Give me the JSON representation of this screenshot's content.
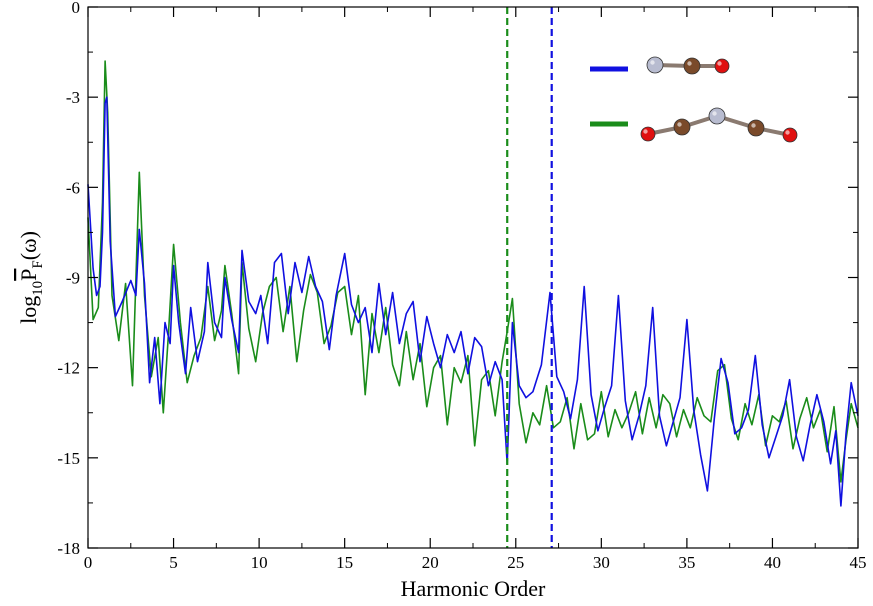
{
  "chart_data": {
    "type": "line",
    "title": "",
    "xlabel": "Harmonic Order",
    "ylabel": {
      "prefix": "log",
      "sub": "10",
      "symbol": "P",
      "symbol_sub": "F",
      "suffix": "(ω)"
    },
    "xlim": [
      0,
      45
    ],
    "ylim": [
      -18,
      0
    ],
    "x_ticks": [
      0,
      5,
      10,
      15,
      20,
      25,
      30,
      35,
      40,
      45
    ],
    "y_ticks": [
      0,
      -3,
      -6,
      -9,
      -12,
      -15,
      -18
    ],
    "grid": false,
    "legend": {
      "placement": "top-right",
      "style": "line swatch with molecule picture"
    },
    "cutoff_lines": [
      {
        "x": 24.5,
        "color": "#1a8c1a",
        "style": "dashed"
      },
      {
        "x": 27.1,
        "color": "#1010e0",
        "style": "dashed"
      }
    ],
    "series": [
      {
        "color": "#1010e0",
        "molecule": [
          "#b8bcd0",
          "#7a4a2a",
          "#e01010"
        ],
        "points": [
          [
            0,
            -5.9
          ],
          [
            0.3,
            -8.7
          ],
          [
            0.5,
            -9.6
          ],
          [
            0.7,
            -9.3
          ],
          [
            0.85,
            -7.5
          ],
          [
            1.0,
            -3.2
          ],
          [
            1.1,
            -3.0
          ],
          [
            1.3,
            -7.8
          ],
          [
            1.6,
            -10.3
          ],
          [
            2.0,
            -9.8
          ],
          [
            2.5,
            -9.1
          ],
          [
            2.8,
            -9.6
          ],
          [
            3.0,
            -7.4
          ],
          [
            3.3,
            -9.2
          ],
          [
            3.6,
            -12.5
          ],
          [
            3.9,
            -11.0
          ],
          [
            4.2,
            -13.2
          ],
          [
            4.5,
            -10.5
          ],
          [
            4.8,
            -11.2
          ],
          [
            5.0,
            -8.6
          ],
          [
            5.3,
            -10.5
          ],
          [
            5.7,
            -12.2
          ],
          [
            6.0,
            -10.0
          ],
          [
            6.4,
            -11.8
          ],
          [
            6.8,
            -10.8
          ],
          [
            7.0,
            -8.5
          ],
          [
            7.4,
            -10.5
          ],
          [
            7.8,
            -11.0
          ],
          [
            8.0,
            -9.0
          ],
          [
            8.4,
            -10.4
          ],
          [
            8.8,
            -11.5
          ],
          [
            9.0,
            -8.1
          ],
          [
            9.4,
            -9.8
          ],
          [
            9.8,
            -10.2
          ],
          [
            10.1,
            -9.6
          ],
          [
            10.5,
            -11.2
          ],
          [
            10.9,
            -8.5
          ],
          [
            11.3,
            -8.2
          ],
          [
            11.7,
            -10.2
          ],
          [
            12.1,
            -8.5
          ],
          [
            12.5,
            -9.5
          ],
          [
            12.9,
            -8.3
          ],
          [
            13.3,
            -9.3
          ],
          [
            13.7,
            -9.8
          ],
          [
            14.1,
            -11.4
          ],
          [
            14.5,
            -9.6
          ],
          [
            15.0,
            -8.2
          ],
          [
            15.4,
            -9.9
          ],
          [
            15.8,
            -10.5
          ],
          [
            16.2,
            -10.0
          ],
          [
            16.6,
            -11.5
          ],
          [
            17.0,
            -9.2
          ],
          [
            17.4,
            -10.9
          ],
          [
            17.8,
            -9.5
          ],
          [
            18.2,
            -11.2
          ],
          [
            18.6,
            -10.2
          ],
          [
            19.0,
            -9.8
          ],
          [
            19.4,
            -11.8
          ],
          [
            19.8,
            -10.3
          ],
          [
            20.2,
            -11.2
          ],
          [
            20.6,
            -12.0
          ],
          [
            21.0,
            -10.9
          ],
          [
            21.4,
            -11.5
          ],
          [
            21.8,
            -10.8
          ],
          [
            22.2,
            -12.2
          ],
          [
            22.6,
            -11.0
          ],
          [
            23.0,
            -11.3
          ],
          [
            23.4,
            -12.6
          ],
          [
            23.8,
            -11.8
          ],
          [
            24.2,
            -12.4
          ],
          [
            24.5,
            -15.2
          ],
          [
            24.8,
            -10.5
          ],
          [
            25.2,
            -12.6
          ],
          [
            25.6,
            -13.0
          ],
          [
            26.0,
            -12.8
          ],
          [
            26.5,
            -11.9
          ],
          [
            27.0,
            -9.5
          ],
          [
            27.4,
            -12.3
          ],
          [
            27.8,
            -12.8
          ],
          [
            28.2,
            -13.7
          ],
          [
            28.6,
            -12.4
          ],
          [
            29.0,
            -9.3
          ],
          [
            29.4,
            -12.9
          ],
          [
            29.8,
            -14.1
          ],
          [
            30.2,
            -13.3
          ],
          [
            30.6,
            -12.6
          ],
          [
            31.0,
            -9.6
          ],
          [
            31.4,
            -13.1
          ],
          [
            31.8,
            -14.4
          ],
          [
            32.2,
            -13.6
          ],
          [
            32.6,
            -12.6
          ],
          [
            33.0,
            -10.0
          ],
          [
            33.4,
            -13.6
          ],
          [
            33.8,
            -14.6
          ],
          [
            34.2,
            -13.8
          ],
          [
            34.6,
            -13.0
          ],
          [
            35.0,
            -10.4
          ],
          [
            35.4,
            -13.4
          ],
          [
            35.8,
            -14.9
          ],
          [
            36.2,
            -16.1
          ],
          [
            36.6,
            -13.7
          ],
          [
            37.0,
            -11.7
          ],
          [
            37.4,
            -12.5
          ],
          [
            37.8,
            -14.2
          ],
          [
            38.2,
            -14.0
          ],
          [
            38.6,
            -13.4
          ],
          [
            39.0,
            -11.6
          ],
          [
            39.4,
            -13.9
          ],
          [
            39.8,
            -15.0
          ],
          [
            40.2,
            -14.3
          ],
          [
            40.6,
            -13.6
          ],
          [
            41.0,
            -12.4
          ],
          [
            41.4,
            -14.3
          ],
          [
            41.8,
            -15.1
          ],
          [
            42.2,
            -13.9
          ],
          [
            42.6,
            -12.9
          ],
          [
            43.0,
            -13.8
          ],
          [
            43.4,
            -15.2
          ],
          [
            43.7,
            -14.1
          ],
          [
            44.0,
            -16.6
          ],
          [
            44.3,
            -14.2
          ],
          [
            44.6,
            -12.5
          ],
          [
            45.0,
            -13.6
          ]
        ]
      },
      {
        "color": "#1a8c1a",
        "molecule": [
          "#e01010",
          "#7a4a2a",
          "#b8bcd0",
          "#7a4a2a",
          "#e01010"
        ],
        "points": [
          [
            0,
            -7.0
          ],
          [
            0.3,
            -10.4
          ],
          [
            0.6,
            -10.0
          ],
          [
            0.85,
            -6.5
          ],
          [
            1.0,
            -1.8
          ],
          [
            1.15,
            -3.5
          ],
          [
            1.4,
            -9.6
          ],
          [
            1.8,
            -11.1
          ],
          [
            2.2,
            -9.2
          ],
          [
            2.6,
            -12.6
          ],
          [
            3.0,
            -5.5
          ],
          [
            3.3,
            -9.6
          ],
          [
            3.7,
            -12.3
          ],
          [
            4.1,
            -11.0
          ],
          [
            4.4,
            -13.5
          ],
          [
            4.7,
            -10.9
          ],
          [
            5.0,
            -7.9
          ],
          [
            5.4,
            -10.5
          ],
          [
            5.8,
            -12.5
          ],
          [
            6.2,
            -11.6
          ],
          [
            6.6,
            -11.0
          ],
          [
            7.0,
            -9.3
          ],
          [
            7.4,
            -11.1
          ],
          [
            7.8,
            -10.1
          ],
          [
            8.0,
            -8.6
          ],
          [
            8.4,
            -10.2
          ],
          [
            8.8,
            -12.2
          ],
          [
            9.0,
            -8.5
          ],
          [
            9.4,
            -10.7
          ],
          [
            9.8,
            -11.8
          ],
          [
            10.2,
            -10.2
          ],
          [
            10.6,
            -9.3
          ],
          [
            11.0,
            -9.0
          ],
          [
            11.4,
            -10.8
          ],
          [
            11.8,
            -9.3
          ],
          [
            12.2,
            -11.8
          ],
          [
            12.6,
            -10.1
          ],
          [
            13.0,
            -8.9
          ],
          [
            13.4,
            -9.5
          ],
          [
            13.8,
            -11.2
          ],
          [
            14.2,
            -10.6
          ],
          [
            14.6,
            -9.5
          ],
          [
            15.0,
            -9.3
          ],
          [
            15.4,
            -10.9
          ],
          [
            15.8,
            -9.6
          ],
          [
            16.2,
            -12.9
          ],
          [
            16.6,
            -10.2
          ],
          [
            17.0,
            -11.5
          ],
          [
            17.4,
            -10.0
          ],
          [
            17.8,
            -11.9
          ],
          [
            18.2,
            -12.6
          ],
          [
            18.6,
            -10.8
          ],
          [
            19.0,
            -12.4
          ],
          [
            19.4,
            -11.2
          ],
          [
            19.8,
            -13.3
          ],
          [
            20.2,
            -12.0
          ],
          [
            20.6,
            -11.6
          ],
          [
            21.0,
            -13.9
          ],
          [
            21.4,
            -12.0
          ],
          [
            21.8,
            -12.5
          ],
          [
            22.2,
            -11.6
          ],
          [
            22.6,
            -14.6
          ],
          [
            23.0,
            -12.4
          ],
          [
            23.4,
            -12.1
          ],
          [
            23.8,
            -13.6
          ],
          [
            24.2,
            -11.8
          ],
          [
            24.5,
            -10.8
          ],
          [
            24.8,
            -9.7
          ],
          [
            25.2,
            -13.2
          ],
          [
            25.6,
            -14.5
          ],
          [
            26.0,
            -13.5
          ],
          [
            26.4,
            -13.9
          ],
          [
            26.8,
            -12.6
          ],
          [
            27.2,
            -14.0
          ],
          [
            27.6,
            -13.8
          ],
          [
            28.0,
            -13.0
          ],
          [
            28.4,
            -14.7
          ],
          [
            28.8,
            -13.2
          ],
          [
            29.2,
            -14.4
          ],
          [
            29.6,
            -14.2
          ],
          [
            30.0,
            -12.8
          ],
          [
            30.4,
            -14.3
          ],
          [
            30.8,
            -13.4
          ],
          [
            31.2,
            -14.0
          ],
          [
            31.6,
            -13.5
          ],
          [
            32.0,
            -12.8
          ],
          [
            32.4,
            -14.2
          ],
          [
            32.8,
            -13.0
          ],
          [
            33.2,
            -14.0
          ],
          [
            33.6,
            -12.9
          ],
          [
            34.0,
            -13.2
          ],
          [
            34.4,
            -14.3
          ],
          [
            34.8,
            -13.4
          ],
          [
            35.2,
            -14.0
          ],
          [
            35.6,
            -13.0
          ],
          [
            36.0,
            -13.6
          ],
          [
            36.4,
            -13.8
          ],
          [
            36.8,
            -12.1
          ],
          [
            37.2,
            -11.9
          ],
          [
            37.6,
            -13.7
          ],
          [
            38.0,
            -14.4
          ],
          [
            38.4,
            -13.2
          ],
          [
            38.8,
            -13.9
          ],
          [
            39.2,
            -12.9
          ],
          [
            39.6,
            -14.6
          ],
          [
            40.0,
            -13.6
          ],
          [
            40.4,
            -13.8
          ],
          [
            40.8,
            -13.1
          ],
          [
            41.2,
            -14.7
          ],
          [
            41.6,
            -13.7
          ],
          [
            42.0,
            -13.0
          ],
          [
            42.4,
            -14.0
          ],
          [
            42.8,
            -13.4
          ],
          [
            43.2,
            -14.8
          ],
          [
            43.6,
            -13.3
          ],
          [
            44.0,
            -15.8
          ],
          [
            44.3,
            -14.4
          ],
          [
            44.6,
            -13.2
          ],
          [
            45.0,
            -14.0
          ]
        ]
      }
    ]
  }
}
